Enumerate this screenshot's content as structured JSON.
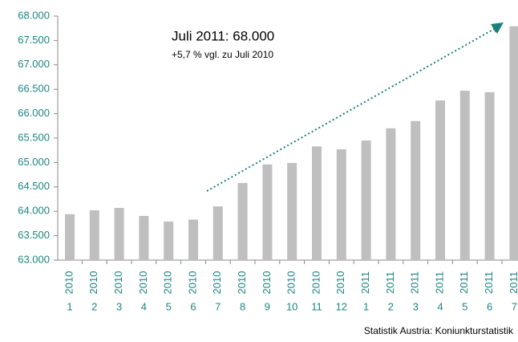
{
  "chart_data": {
    "type": "bar",
    "annotation_title": "Juli 2011: 68.000",
    "annotation_subtitle": "+5,7 % vgl. zu Juli 2010",
    "source": "Statistik Austria: Koniunkturstatistik",
    "categories": [
      {
        "year": "2010",
        "month": "1"
      },
      {
        "year": "2010",
        "month": "2"
      },
      {
        "year": "2010",
        "month": "3"
      },
      {
        "year": "2010",
        "month": "4"
      },
      {
        "year": "2010",
        "month": "5"
      },
      {
        "year": "2010",
        "month": "6"
      },
      {
        "year": "2010",
        "month": "7"
      },
      {
        "year": "2010",
        "month": "8"
      },
      {
        "year": "2010",
        "month": "9"
      },
      {
        "year": "2010",
        "month": "10"
      },
      {
        "year": "2010",
        "month": "11"
      },
      {
        "year": "2010",
        "month": "12"
      },
      {
        "year": "2011",
        "month": "1"
      },
      {
        "year": "2011",
        "month": "2"
      },
      {
        "year": "2011",
        "month": "3"
      },
      {
        "year": "2011",
        "month": "4"
      },
      {
        "year": "2011",
        "month": "5"
      },
      {
        "year": "2011",
        "month": "6"
      },
      {
        "year": "2011",
        "month": "7"
      }
    ],
    "values": [
      63940,
      64020,
      64070,
      63905,
      63790,
      63830,
      64100,
      64580,
      64960,
      64990,
      65330,
      65270,
      65450,
      65700,
      65850,
      66270,
      66470,
      66440,
      67790
    ],
    "color": "#bfbfbf",
    "label_color": "#1a8580",
    "ylim": [
      63000,
      68000
    ],
    "yticks": [
      {
        "value": 63000,
        "label": "63.000"
      },
      {
        "value": 63500,
        "label": "63.500"
      },
      {
        "value": 64000,
        "label": "64.000"
      },
      {
        "value": 64500,
        "label": "64.500"
      },
      {
        "value": 65000,
        "label": "65.000"
      },
      {
        "value": 65500,
        "label": "65.500"
      },
      {
        "value": 66000,
        "label": "66.000"
      },
      {
        "value": 66500,
        "label": "66.500"
      },
      {
        "value": 67000,
        "label": "67.000"
      },
      {
        "value": 67500,
        "label": "67.500"
      },
      {
        "value": 68000,
        "label": "68.000"
      }
    ],
    "grid": false
  }
}
